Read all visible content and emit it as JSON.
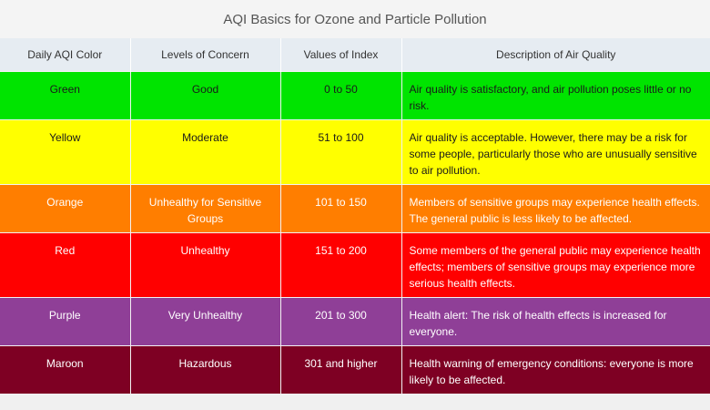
{
  "title": "AQI Basics for Ozone and Particle Pollution",
  "headers": [
    "Daily AQI Color",
    "Levels of Concern",
    "Values of Index",
    "Description of Air Quality"
  ],
  "rows": [
    {
      "color": "Green",
      "level": "Good",
      "values": "0 to 50",
      "description": "Air quality is satisfactory, and air pollution poses little or no risk.",
      "bg": "#00e400"
    },
    {
      "color": "Yellow",
      "level": "Moderate",
      "values": "51 to 100",
      "description": "Air quality is acceptable. However, there may be a risk for some people, particularly those who are unusually sensitive to air pollution.",
      "bg": "#ffff00"
    },
    {
      "color": "Orange",
      "level": "Unhealthy for Sensitive Groups",
      "values": "101 to 150",
      "description": "Members of sensitive groups may experience health effects. The general public is less likely to be affected.",
      "bg": "#ff7e00"
    },
    {
      "color": "Red",
      "level": "Unhealthy",
      "values": "151 to 200",
      "description": "Some members of the general public may experience health effects; members of sensitive groups may experience more serious health effects.",
      "bg": "#ff0000"
    },
    {
      "color": "Purple",
      "level": "Very Unhealthy",
      "values": "201 to 300",
      "description": "Health alert: The risk of health effects is increased for everyone.",
      "bg": "#8f3f97"
    },
    {
      "color": "Maroon",
      "level": "Hazardous",
      "values": "301 and higher",
      "description": "Health warning of emergency conditions: everyone is more likely to be affected.",
      "bg": "#7e0023"
    }
  ]
}
